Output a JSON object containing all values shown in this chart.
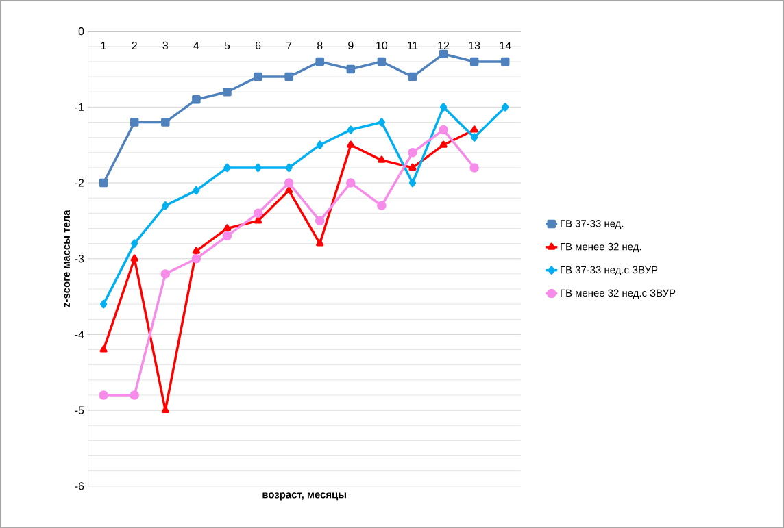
{
  "chart_data": {
    "type": "line",
    "xlabel": "возраст, месяцы",
    "ylabel": "z-score массы тела",
    "categories": [
      "1",
      "2",
      "3",
      "4",
      "5",
      "6",
      "7",
      "8",
      "9",
      "10",
      "11",
      "12",
      "13",
      "14"
    ],
    "ylim": [
      -6,
      0
    ],
    "yticks": [
      -6,
      -5,
      -4,
      -3,
      -2,
      -1,
      0
    ],
    "grid": "y",
    "legend": "right",
    "line_style": "solid",
    "series": [
      {
        "name": "ГВ 37-33 нед.",
        "color": "#4f81bd",
        "marker": "square",
        "values": [
          -2,
          -1.2,
          -1.2,
          -0.9,
          -0.8,
          -0.6,
          -0.6,
          -0.4,
          -0.5,
          -0.4,
          -0.6,
          -0.3,
          -0.4,
          -0.4
        ]
      },
      {
        "name": "ГВ менее 32 нед.",
        "color": "#ff0000",
        "marker": "triangle",
        "values": [
          -4.2,
          -3.0,
          -5.0,
          -2.9,
          -2.6,
          -2.5,
          -2.1,
          -2.8,
          -1.5,
          -1.7,
          -1.8,
          -1.5,
          -1.3,
          null
        ]
      },
      {
        "name": "ГВ 37-33 нед.с ЗВУР",
        "color": "#00b0f0",
        "marker": "diamond",
        "values": [
          -3.6,
          -2.8,
          -2.3,
          -2.1,
          -1.8,
          -1.8,
          -1.8,
          -1.5,
          -1.3,
          -1.2,
          -2.0,
          -1.0,
          -1.4,
          -1.0
        ]
      },
      {
        "name": "ГВ менее 32 нед.с ЗВУР",
        "color": "#f68bea",
        "marker": "circle",
        "values": [
          -4.8,
          -4.8,
          -3.2,
          -3.0,
          -2.7,
          -2.4,
          -2.0,
          -2.5,
          -2.0,
          -2.3,
          -1.6,
          -1.3,
          -1.8,
          null
        ]
      }
    ]
  }
}
